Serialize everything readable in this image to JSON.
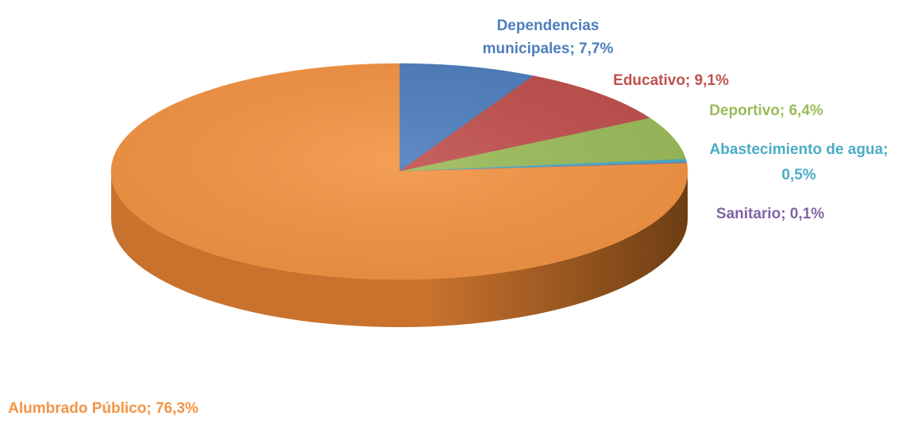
{
  "chart_data": {
    "type": "pie",
    "style": "3d",
    "start_angle_deg": 0,
    "direction": "clockwise",
    "slices": [
      {
        "label": "Dependencias municipales",
        "value": 7.7,
        "value_text": "7,7%",
        "color": "#4E7EBE",
        "label_lines": [
          "Dependencias",
          "municipales; 7,7%"
        ]
      },
      {
        "label": "Educativo",
        "value": 9.1,
        "value_text": "9,1%",
        "color": "#C0504D",
        "label_lines": [
          "Educativo; 9,1%"
        ]
      },
      {
        "label": "Deportivo",
        "value": 6.4,
        "value_text": "6,4%",
        "color": "#9BBB59",
        "label_lines": [
          "Deportivo; 6,4%"
        ]
      },
      {
        "label": "Abastecimiento de agua",
        "value": 0.5,
        "value_text": "0,5%",
        "color": "#4BACC6",
        "label_lines": [
          "Abastecimiento de agua;",
          "0,5%"
        ]
      },
      {
        "label": "Sanitario",
        "value": 0.1,
        "value_text": "0,1%",
        "color": "#8064A2",
        "label_lines": [
          "Sanitario; 0,1%"
        ]
      },
      {
        "label": "Alumbrado Público",
        "value": 76.3,
        "value_text": "76,3%",
        "color": "#F49444",
        "side_color": "#C9722E",
        "side_dark": "#6E3E14",
        "label_lines": [
          "Alumbrado Público; 76,3%"
        ]
      }
    ]
  }
}
